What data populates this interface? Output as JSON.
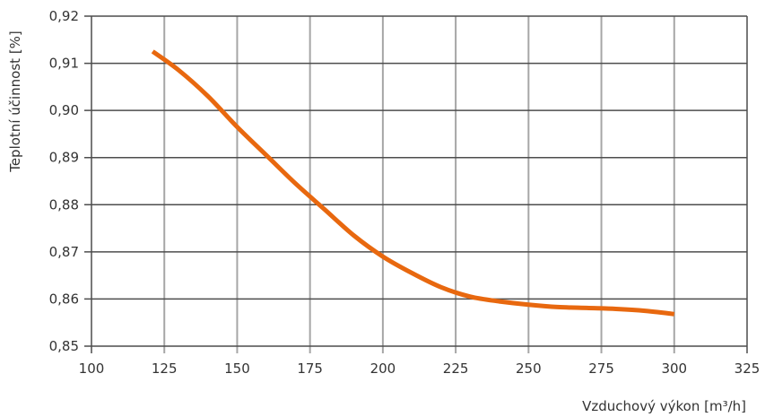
{
  "chart_data": {
    "type": "line",
    "title": "",
    "xlabel": "Vzduchový výkon [m³/h]",
    "ylabel": "Teplotní účinnost [%]",
    "xlim": [
      100,
      325
    ],
    "ylim": [
      0.85,
      0.92
    ],
    "x_ticks": [
      100,
      125,
      150,
      175,
      200,
      225,
      250,
      275,
      300,
      325
    ],
    "x_tick_labels": [
      "100",
      "125",
      "150",
      "175",
      "200",
      "225",
      "250",
      "275",
      "300",
      "325"
    ],
    "y_ticks": [
      0.85,
      0.86,
      0.87,
      0.88,
      0.89,
      0.9,
      0.91,
      0.92
    ],
    "y_tick_labels": [
      "0,85",
      "0,86",
      "0,87",
      "0,88",
      "0,89",
      "0,90",
      "0,91",
      "0,92"
    ],
    "grid": true,
    "legend": "none",
    "series": [
      {
        "color": "#e8680f",
        "x": [
          121,
          130,
          140,
          150,
          160,
          170,
          180,
          190,
          200,
          210,
          220,
          230,
          240,
          250,
          260,
          270,
          280,
          290,
          300
        ],
        "y": [
          0.9125,
          0.9085,
          0.903,
          0.8965,
          0.8905,
          0.8845,
          0.879,
          0.8735,
          0.869,
          0.8655,
          0.8625,
          0.8605,
          0.8595,
          0.8588,
          0.8583,
          0.8581,
          0.8579,
          0.8575,
          0.8568
        ]
      }
    ]
  }
}
